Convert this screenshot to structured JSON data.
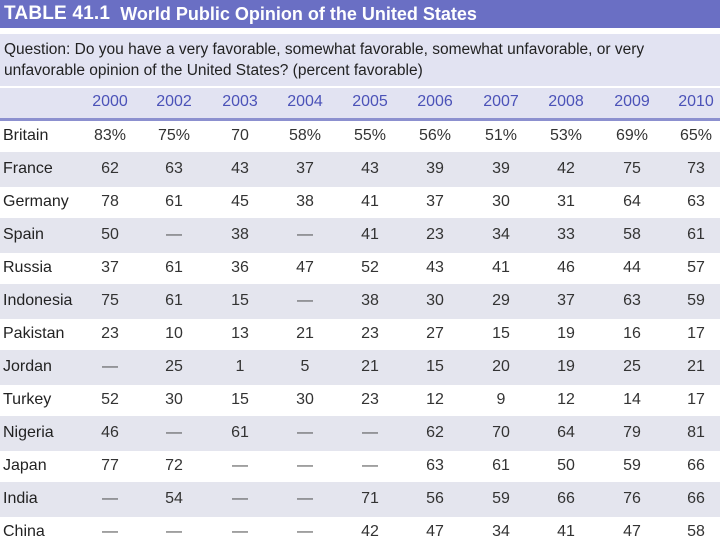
{
  "table": {
    "number": "TABLE 41.1",
    "title": "World Public Opinion of the United States",
    "question": "Question: Do you have a very favorable, somewhat favorable, somewhat unfavorable, or very unfavorable opinion of the United States? (percent favorable)",
    "years": [
      "2000",
      "2002",
      "2003",
      "2004",
      "2005",
      "2006",
      "2007",
      "2008",
      "2009",
      "2010"
    ],
    "rows": [
      {
        "country": "Britain",
        "values": [
          "83%",
          "75%",
          "70",
          "58%",
          "55%",
          "56%",
          "51%",
          "53%",
          "69%",
          "65%"
        ]
      },
      {
        "country": "France",
        "values": [
          "62",
          "63",
          "43",
          "37",
          "43",
          "39",
          "39",
          "42",
          "75",
          "73"
        ]
      },
      {
        "country": "Germany",
        "values": [
          "78",
          "61",
          "45",
          "38",
          "41",
          "37",
          "30",
          "31",
          "64",
          "63"
        ]
      },
      {
        "country": "Spain",
        "values": [
          "50",
          "—",
          "38",
          "—",
          "41",
          "23",
          "34",
          "33",
          "58",
          "61"
        ]
      },
      {
        "country": "Russia",
        "values": [
          "37",
          "61",
          "36",
          "47",
          "52",
          "43",
          "41",
          "46",
          "44",
          "57"
        ]
      },
      {
        "country": "Indonesia",
        "values": [
          "75",
          "61",
          "15",
          "—",
          "38",
          "30",
          "29",
          "37",
          "63",
          "59"
        ]
      },
      {
        "country": "Pakistan",
        "values": [
          "23",
          "10",
          "13",
          "21",
          "23",
          "27",
          "15",
          "19",
          "16",
          "17"
        ]
      },
      {
        "country": "Jordan",
        "values": [
          "—",
          "25",
          "1",
          "5",
          "21",
          "15",
          "20",
          "19",
          "25",
          "21"
        ]
      },
      {
        "country": "Turkey",
        "values": [
          "52",
          "30",
          "15",
          "30",
          "23",
          "12",
          "9",
          "12",
          "14",
          "17"
        ]
      },
      {
        "country": "Nigeria",
        "values": [
          "46",
          "—",
          "61",
          "—",
          "—",
          "62",
          "70",
          "64",
          "79",
          "81"
        ]
      },
      {
        "country": "Japan",
        "values": [
          "77",
          "72",
          "—",
          "—",
          "—",
          "63",
          "61",
          "50",
          "59",
          "66"
        ]
      },
      {
        "country": "India",
        "values": [
          "—",
          "54",
          "—",
          "—",
          "71",
          "56",
          "59",
          "66",
          "76",
          "66"
        ]
      },
      {
        "country": "China",
        "values": [
          "—",
          "—",
          "—",
          "—",
          "42",
          "47",
          "34",
          "41",
          "47",
          "58"
        ]
      }
    ]
  },
  "colors": {
    "title_bar": "#6a6fc4",
    "header_text": "#4b52b8",
    "shade": "#e2e3f2"
  }
}
